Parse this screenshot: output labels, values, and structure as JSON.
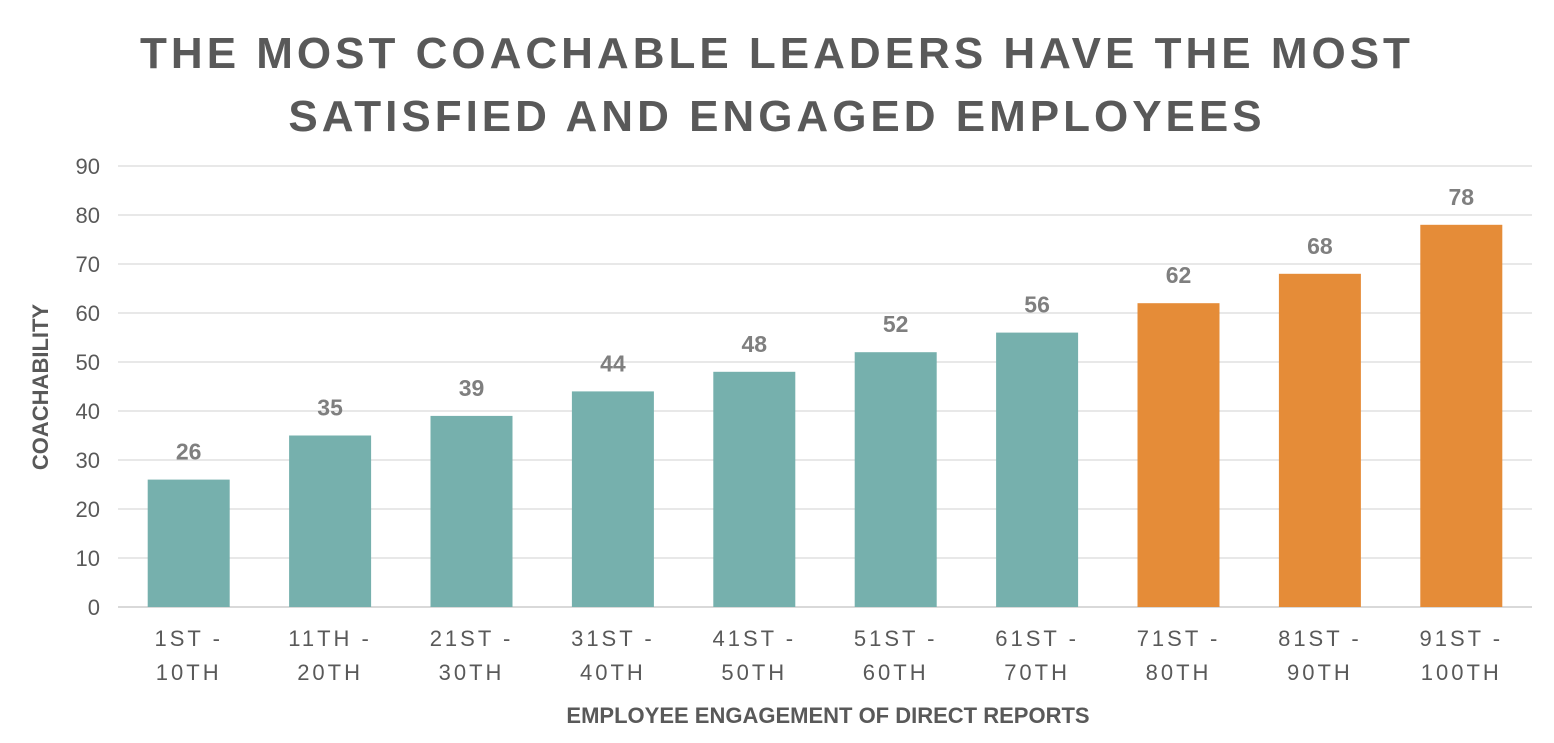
{
  "chart_data": {
    "type": "bar",
    "title_lines": [
      "THE MOST COACHABLE LEADERS HAVE THE MOST",
      "SATISFIED AND ENGAGED EMPLOYEES"
    ],
    "xlabel": "EMPLOYEE ENGAGEMENT OF DIRECT REPORTS",
    "ylabel": "COACHABILITY",
    "ylim": [
      0,
      90
    ],
    "yticks": [
      0,
      10,
      20,
      30,
      40,
      50,
      60,
      70,
      80,
      90
    ],
    "grid": true,
    "categories": [
      [
        "1ST -",
        "10TH"
      ],
      [
        "11TH -",
        "20TH"
      ],
      [
        "21ST -",
        "30TH"
      ],
      [
        "31ST -",
        "40TH"
      ],
      [
        "41ST -",
        "50TH"
      ],
      [
        "51ST -",
        "60TH"
      ],
      [
        "61ST -",
        "70TH"
      ],
      [
        "71ST -",
        "80TH"
      ],
      [
        "81ST -",
        "90TH"
      ],
      [
        "91ST -",
        "100TH"
      ]
    ],
    "values": [
      26,
      35,
      39,
      44,
      48,
      52,
      56,
      62,
      68,
      78
    ],
    "bar_colors": [
      "#76B0AD",
      "#76B0AD",
      "#76B0AD",
      "#76B0AD",
      "#76B0AD",
      "#76B0AD",
      "#76B0AD",
      "#E58C38",
      "#E58C38",
      "#E58C38"
    ]
  }
}
